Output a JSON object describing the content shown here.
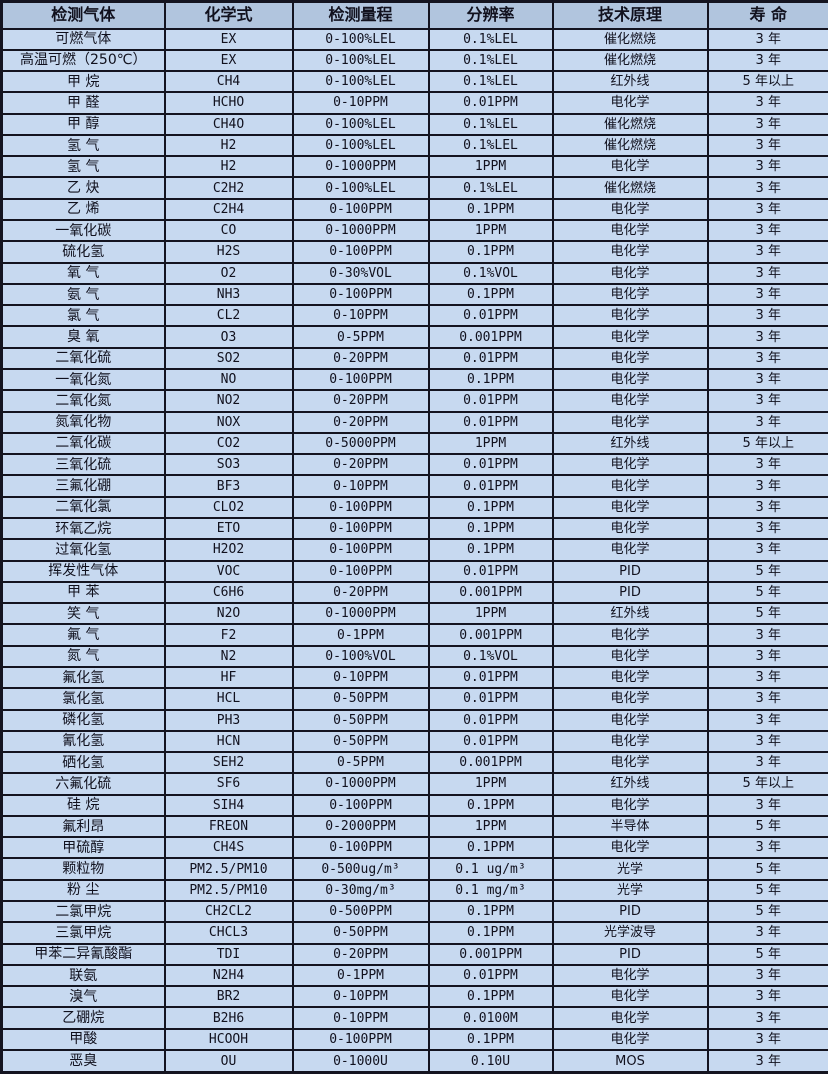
{
  "table": {
    "columns": [
      "检测气体",
      "化学式",
      "检测量程",
      "分辨率",
      "技术原理",
      "寿 命"
    ],
    "rows": [
      [
        "可燃气体",
        "EX",
        "0-100%LEL",
        "0.1%LEL",
        "催化燃烧",
        "3 年"
      ],
      [
        "高温可燃（250℃）",
        "EX",
        "0-100%LEL",
        "0.1%LEL",
        "催化燃烧",
        "3 年"
      ],
      [
        "甲 烷",
        "CH4",
        "0-100%LEL",
        "0.1%LEL",
        "红外线",
        "5 年以上"
      ],
      [
        "甲 醛",
        "HCHO",
        "0-10PPM",
        "0.01PPM",
        "电化学",
        "3 年"
      ],
      [
        "甲 醇",
        "CH4O",
        "0-100%LEL",
        "0.1%LEL",
        "催化燃烧",
        "3 年"
      ],
      [
        "氢 气",
        "H2",
        "0-100%LEL",
        "0.1%LEL",
        "催化燃烧",
        "3 年"
      ],
      [
        "氢 气",
        "H2",
        "0-1000PPM",
        "1PPM",
        "电化学",
        "3 年"
      ],
      [
        "乙 炔",
        "C2H2",
        "0-100%LEL",
        "0.1%LEL",
        "催化燃烧",
        "3 年"
      ],
      [
        "乙 烯",
        "C2H4",
        "0-100PPM",
        "0.1PPM",
        "电化学",
        "3 年"
      ],
      [
        "一氧化碳",
        "CO",
        "0-1000PPM",
        "1PPM",
        "电化学",
        "3 年"
      ],
      [
        "硫化氢",
        "H2S",
        "0-100PPM",
        "0.1PPM",
        "电化学",
        "3 年"
      ],
      [
        "氧 气",
        "O2",
        "0-30%VOL",
        "0.1%VOL",
        "电化学",
        "3 年"
      ],
      [
        "氨 气",
        "NH3",
        "0-100PPM",
        "0.1PPM",
        "电化学",
        "3 年"
      ],
      [
        "氯 气",
        "CL2",
        "0-10PPM",
        "0.01PPM",
        "电化学",
        "3 年"
      ],
      [
        "臭 氧",
        "O3",
        "0-5PPM",
        "0.001PPM",
        "电化学",
        "3 年"
      ],
      [
        "二氧化硫",
        "SO2",
        "0-20PPM",
        "0.01PPM",
        "电化学",
        "3 年"
      ],
      [
        "一氧化氮",
        "NO",
        "0-100PPM",
        "0.1PPM",
        "电化学",
        "3 年"
      ],
      [
        "二氧化氮",
        "NO2",
        "0-20PPM",
        "0.01PPM",
        "电化学",
        "3 年"
      ],
      [
        "氮氧化物",
        "NOX",
        "0-20PPM",
        "0.01PPM",
        "电化学",
        "3 年"
      ],
      [
        "二氧化碳",
        "CO2",
        "0-5000PPM",
        "1PPM",
        "红外线",
        "5 年以上"
      ],
      [
        "三氧化硫",
        "SO3",
        "0-20PPM",
        "0.01PPM",
        "电化学",
        "3 年"
      ],
      [
        "三氟化硼",
        "BF3",
        "0-10PPM",
        "0.01PPM",
        "电化学",
        "3 年"
      ],
      [
        "二氧化氯",
        "CLO2",
        "0-100PPM",
        "0.1PPM",
        "电化学",
        "3 年"
      ],
      [
        "环氧乙烷",
        "ETO",
        "0-100PPM",
        "0.1PPM",
        "电化学",
        "3 年"
      ],
      [
        "过氧化氢",
        "H2O2",
        "0-100PPM",
        "0.1PPM",
        "电化学",
        "3 年"
      ],
      [
        "挥发性气体",
        "VOC",
        "0-100PPM",
        "0.01PPM",
        "PID",
        "5 年"
      ],
      [
        "甲 苯",
        "C6H6",
        "0-20PPM",
        "0.001PPM",
        "PID",
        "5 年"
      ],
      [
        "笑 气",
        "N2O",
        "0-1000PPM",
        "1PPM",
        "红外线",
        "5 年"
      ],
      [
        "氟 气",
        "F2",
        "0-1PPM",
        "0.001PPM",
        "电化学",
        "3 年"
      ],
      [
        "氮 气",
        "N2",
        "0-100%VOL",
        "0.1%VOL",
        "电化学",
        "3 年"
      ],
      [
        "氟化氢",
        "HF",
        "0-10PPM",
        "0.01PPM",
        "电化学",
        "3 年"
      ],
      [
        "氯化氢",
        "HCL",
        "0-50PPM",
        "0.01PPM",
        "电化学",
        "3 年"
      ],
      [
        "磷化氢",
        "PH3",
        "0-50PPM",
        "0.01PPM",
        "电化学",
        "3 年"
      ],
      [
        "氰化氢",
        "HCN",
        "0-50PPM",
        "0.01PPM",
        "电化学",
        "3 年"
      ],
      [
        "硒化氢",
        "SEH2",
        "0-5PPM",
        "0.001PPM",
        "电化学",
        "3 年"
      ],
      [
        "六氟化硫",
        "SF6",
        "0-1000PPM",
        "1PPM",
        "红外线",
        "5 年以上"
      ],
      [
        "硅 烷",
        "SIH4",
        "0-100PPM",
        "0.1PPM",
        "电化学",
        "3 年"
      ],
      [
        "氟利昂",
        "FREON",
        "0-2000PPM",
        "1PPM",
        "半导体",
        "5 年"
      ],
      [
        "甲硫醇",
        "CH4S",
        "0-100PPM",
        "0.1PPM",
        "电化学",
        "3 年"
      ],
      [
        "颗粒物",
        "PM2.5/PM10",
        "0-500ug/m³",
        "0.1 ug/m³",
        "光学",
        "5 年"
      ],
      [
        "粉 尘",
        "PM2.5/PM10",
        "0-30mg/m³",
        "0.1 mg/m³",
        "光学",
        "5 年"
      ],
      [
        "二氯甲烷",
        "CH2CL2",
        "0-500PPM",
        "0.1PPM",
        "PID",
        "5 年"
      ],
      [
        "三氯甲烷",
        "CHCL3",
        "0-50PPM",
        "0.1PPM",
        "光学波导",
        "3 年"
      ],
      [
        "甲苯二异氰酸酯",
        "TDI",
        "0-20PPM",
        "0.001PPM",
        "PID",
        "5 年"
      ],
      [
        "联氨",
        "N2H4",
        "0-1PPM",
        "0.01PPM",
        "电化学",
        "3 年"
      ],
      [
        "溴气",
        "BR2",
        "0-10PPM",
        "0.1PPM",
        "电化学",
        "3 年"
      ],
      [
        "乙硼烷",
        "B2H6",
        "0-10PPM",
        "0.0100M",
        "电化学",
        "3 年"
      ],
      [
        "甲酸",
        "HCOOH",
        "0-100PPM",
        "0.1PPM",
        "电化学",
        "3 年"
      ],
      [
        "恶臭",
        "OU",
        "0-1000U",
        "0.10U",
        "MOS",
        "3 年"
      ]
    ]
  },
  "colors": {
    "header_bg": "#b1c5de",
    "row_bg": "#c7d9f0",
    "grid": "#141420",
    "text": "#11111e"
  }
}
